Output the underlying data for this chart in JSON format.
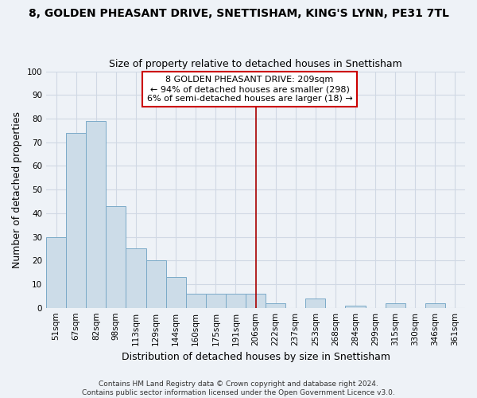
{
  "title": "8, GOLDEN PHEASANT DRIVE, SNETTISHAM, KING'S LYNN, PE31 7TL",
  "subtitle": "Size of property relative to detached houses in Snettisham",
  "xlabel": "Distribution of detached houses by size in Snettisham",
  "ylabel": "Number of detached properties",
  "bar_labels": [
    "51sqm",
    "67sqm",
    "82sqm",
    "98sqm",
    "113sqm",
    "129sqm",
    "144sqm",
    "160sqm",
    "175sqm",
    "191sqm",
    "206sqm",
    "222sqm",
    "237sqm",
    "253sqm",
    "268sqm",
    "284sqm",
    "299sqm",
    "315sqm",
    "330sqm",
    "346sqm",
    "361sqm"
  ],
  "bar_values": [
    30,
    74,
    79,
    43,
    25,
    20,
    13,
    6,
    6,
    6,
    6,
    2,
    0,
    4,
    0,
    1,
    0,
    2,
    0,
    2,
    0
  ],
  "bar_color": "#ccdce8",
  "bar_edge_color": "#7aaac8",
  "vline_x_index": 10,
  "vline_color": "#aa0000",
  "ylim": [
    0,
    100
  ],
  "yticks": [
    0,
    10,
    20,
    30,
    40,
    50,
    60,
    70,
    80,
    90,
    100
  ],
  "annotation_line1": "8 GOLDEN PHEASANT DRIVE: 209sqm",
  "annotation_line2": "← 94% of detached houses are smaller (298)",
  "annotation_line3": "6% of semi-detached houses are larger (18) →",
  "footer_line1": "Contains HM Land Registry data © Crown copyright and database right 2024.",
  "footer_line2": "Contains public sector information licensed under the Open Government Licence v3.0.",
  "background_color": "#eef2f7",
  "grid_color": "#d0d8e4",
  "title_fontsize": 10,
  "subtitle_fontsize": 9,
  "axis_label_fontsize": 9,
  "tick_fontsize": 7.5,
  "annotation_fontsize": 8,
  "footer_fontsize": 6.5
}
